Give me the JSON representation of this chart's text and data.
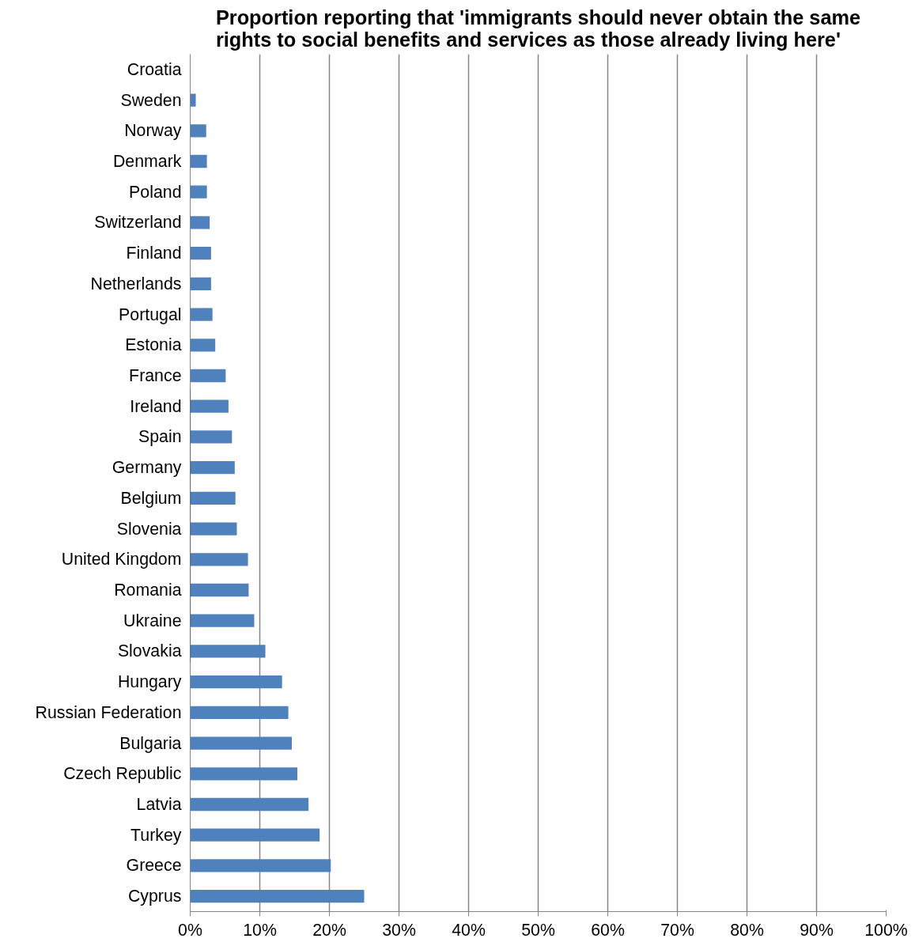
{
  "chart_data": {
    "type": "bar",
    "orientation": "horizontal",
    "title": "Proportion reporting that 'immigrants should never obtain the same rights to social benefits and services as those already living here'",
    "categories": [
      "Croatia",
      "Sweden",
      "Norway",
      "Denmark",
      "Poland",
      "Switzerland",
      "Finland",
      "Netherlands",
      "Portugal",
      "Estonia",
      "France",
      "Ireland",
      "Spain",
      "Germany",
      "Belgium",
      "Slovenia",
      "United Kingdom",
      "Romania",
      "Ukraine",
      "Slovakia",
      "Hungary",
      "Russian Federation",
      "Bulgaria",
      "Czech Republic",
      "Latvia",
      "Turkey",
      "Greece",
      "Cyprus"
    ],
    "values": [
      0,
      0.8,
      2.3,
      2.4,
      2.4,
      2.8,
      3.0,
      3.0,
      3.2,
      3.6,
      5.1,
      5.5,
      6.0,
      6.4,
      6.5,
      6.7,
      8.3,
      8.4,
      9.2,
      10.8,
      13.2,
      14.1,
      14.6,
      15.4,
      17.0,
      18.6,
      20.2,
      25.0
    ],
    "color": "#4f81bd",
    "xlim": [
      0,
      100
    ],
    "xticks": [
      {
        "value": 0,
        "label": "0%"
      },
      {
        "value": 10,
        "label": "10%"
      },
      {
        "value": 20,
        "label": "20%"
      },
      {
        "value": 30,
        "label": "30%"
      },
      {
        "value": 40,
        "label": "40%"
      },
      {
        "value": 50,
        "label": "50%"
      },
      {
        "value": 60,
        "label": "60%"
      },
      {
        "value": 70,
        "label": "70%"
      },
      {
        "value": 80,
        "label": "80%"
      },
      {
        "value": 90,
        "label": "90%"
      },
      {
        "value": 100,
        "label": "100%"
      }
    ],
    "grid": "x"
  }
}
